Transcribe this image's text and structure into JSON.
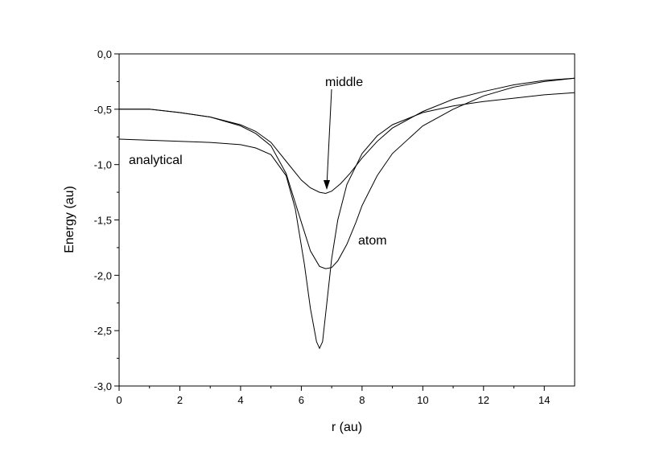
{
  "chart_data": {
    "type": "line",
    "xlabel": "r (au)",
    "ylabel": "Energy (au)",
    "xlim": [
      0,
      15
    ],
    "ylim": [
      -3.0,
      0.0
    ],
    "x_ticks": [
      0,
      2,
      4,
      6,
      8,
      10,
      12,
      14
    ],
    "x_tick_labels": [
      "0",
      "2",
      "4",
      "6",
      "8",
      "10",
      "12",
      "14"
    ],
    "y_ticks": [
      0.0,
      -0.5,
      -1.0,
      -1.5,
      -2.0,
      -2.5,
      -3.0
    ],
    "y_tick_labels": [
      "0,0",
      "-0,5",
      "-1,0",
      "-1,5",
      "-2,0",
      "-2,5",
      "-3,0"
    ],
    "grid": false,
    "line_color": "#000000",
    "series": [
      {
        "x": [
          0,
          1,
          2,
          3,
          4,
          4.5,
          5,
          5.5,
          6,
          6.3,
          6.6,
          6.8,
          7,
          7.3,
          7.6,
          8,
          8.5,
          9,
          10,
          11,
          12,
          13,
          14,
          15
        ],
        "y": [
          -0.5,
          -0.5,
          -0.53,
          -0.57,
          -0.64,
          -0.7,
          -0.8,
          -0.97,
          -1.14,
          -1.21,
          -1.25,
          -1.26,
          -1.24,
          -1.17,
          -1.08,
          -0.94,
          -0.79,
          -0.67,
          -0.52,
          -0.41,
          -0.34,
          -0.28,
          -0.24,
          -0.22
        ]
      },
      {
        "x": [
          0,
          1,
          2,
          3,
          4,
          4.5,
          5,
          5.5,
          6,
          6.3,
          6.6,
          6.8,
          7,
          7.2,
          7.5,
          7.8,
          8,
          8.5,
          9,
          10,
          11,
          12,
          13,
          14,
          15
        ],
        "y": [
          -0.5,
          -0.5,
          -0.53,
          -0.57,
          -0.65,
          -0.72,
          -0.83,
          -1.08,
          -1.52,
          -1.78,
          -1.92,
          -1.94,
          -1.93,
          -1.87,
          -1.72,
          -1.52,
          -1.37,
          -1.1,
          -0.9,
          -0.65,
          -0.5,
          -0.38,
          -0.3,
          -0.25,
          -0.22
        ]
      },
      {
        "x": [
          0,
          1,
          2,
          3,
          4,
          4.5,
          5,
          5.5,
          5.8,
          6.1,
          6.3,
          6.5,
          6.6,
          6.7,
          6.8,
          7,
          7.2,
          7.5,
          8,
          8.5,
          9,
          10,
          11,
          12,
          13,
          14,
          15
        ],
        "y": [
          -0.77,
          -0.78,
          -0.79,
          -0.8,
          -0.82,
          -0.85,
          -0.91,
          -1.1,
          -1.4,
          -1.9,
          -2.3,
          -2.6,
          -2.66,
          -2.6,
          -2.35,
          -1.85,
          -1.5,
          -1.18,
          -0.9,
          -0.74,
          -0.64,
          -0.53,
          -0.47,
          -0.43,
          -0.4,
          -0.37,
          -0.35
        ]
      }
    ],
    "annotations": [
      {
        "text": "middle",
        "x": 6.8,
        "y": -1.26
      },
      {
        "text": "atom"
      },
      {
        "text": "analytical"
      }
    ]
  }
}
